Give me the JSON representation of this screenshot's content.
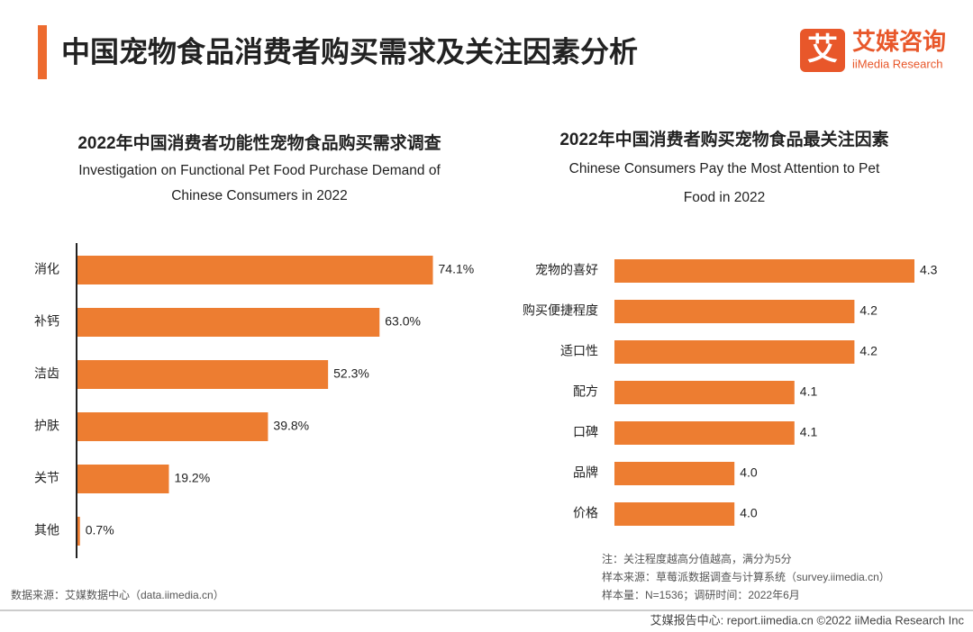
{
  "header": {
    "title": "中国宠物食品消费者购买需求及关注因素分析",
    "logo_mark": "艾",
    "logo_name": "艾媒咨询",
    "logo_sub": "iiMedia Research"
  },
  "chart_data": [
    {
      "type": "hbar",
      "title": "2022年中国消费者功能性宠物食品购买需求调查",
      "subtitle": [
        "Investigation on Functional Pet Food Purchase Demand of",
        "Chinese Consumers in 2022"
      ],
      "categories": [
        "消化",
        "补钙",
        "洁齿",
        "护肤",
        "关节",
        "其他"
      ],
      "values": [
        74.1,
        63.0,
        52.3,
        39.8,
        19.2,
        0.7
      ],
      "value_labels": [
        "74.1%",
        "63.0%",
        "52.3%",
        "39.8%",
        "19.2%",
        "0.7%"
      ],
      "color": "#ed7d31",
      "xlim": [
        0,
        80
      ],
      "source": "数据来源：艾媒数据中心（data.iimedia.cn）"
    },
    {
      "type": "hbar",
      "title": "2022年中国消费者购买宠物食品最关注因素",
      "subtitle": [
        "Chinese Consumers Pay the Most Attention to Pet",
        "Food in 2022"
      ],
      "categories": [
        "宠物的喜好",
        "购买便捷程度",
        "适口性",
        "配方",
        "口碑",
        "品牌",
        "价格"
      ],
      "values": [
        4.3,
        4.2,
        4.2,
        4.1,
        4.1,
        4.0,
        4.0
      ],
      "value_labels": [
        "4.3",
        "4.2",
        "4.2",
        "4.1",
        "4.1",
        "4.0",
        "4.0"
      ],
      "color": "#ed7d31",
      "xlim": [
        3.8,
        4.3
      ],
      "notes": [
        "注：关注程度越高分值越高，满分为5分",
        "样本来源：草莓派数据调查与计算系统（survey.iimedia.cn）",
        "样本量：N=1536；调研时间：2022年6月"
      ]
    }
  ],
  "footer": "艾媒报告中心: report.iimedia.cn  ©2022  iiMedia Research  Inc"
}
